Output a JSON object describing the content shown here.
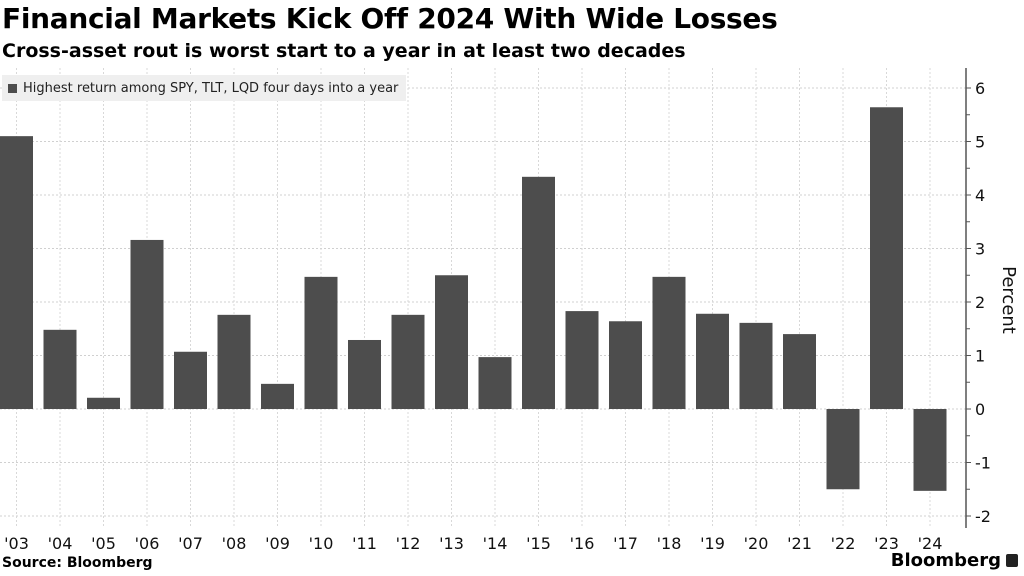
{
  "header": {
    "title": "Financial Markets Kick Off 2024 With Wide Losses",
    "subtitle": "Cross-asset rout is worst start to a year in at least two decades"
  },
  "footer": {
    "source": "Source: Bloomberg",
    "brand": "Bloomberg"
  },
  "chart_data": {
    "type": "bar",
    "title": "Financial Markets Kick Off 2024 With Wide Losses",
    "xlabel": "",
    "ylabel": "Percent",
    "ylim": [
      -2,
      6
    ],
    "yticks": [
      -2,
      -1,
      0,
      1,
      2,
      3,
      4,
      5,
      6
    ],
    "legend": "top-left",
    "grid": true,
    "series": [
      {
        "name": "Highest return among SPY, TLT, LQD four days into a year",
        "color": "#4d4d4d",
        "values": [
          5.1,
          1.48,
          0.21,
          3.16,
          1.07,
          1.76,
          0.47,
          2.47,
          1.29,
          1.76,
          2.5,
          0.97,
          4.34,
          1.83,
          1.64,
          2.47,
          1.78,
          1.61,
          1.4,
          -1.5,
          5.64,
          -1.53
        ]
      }
    ],
    "categories": [
      "'03",
      "'04",
      "'05",
      "'06",
      "'07",
      "'08",
      "'09",
      "'10",
      "'11",
      "'12",
      "'13",
      "'14",
      "'15",
      "'16",
      "'17",
      "'18",
      "'19",
      "'20",
      "'21",
      "'22",
      "'23",
      "'24"
    ]
  }
}
